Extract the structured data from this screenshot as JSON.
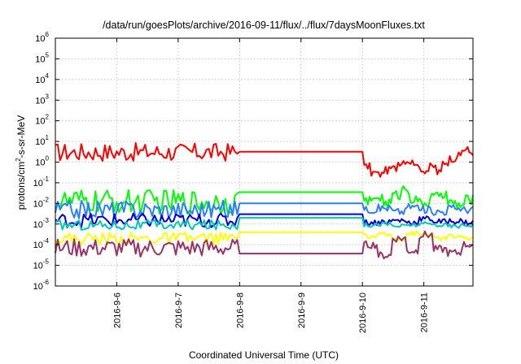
{
  "chart_data": {
    "type": "line",
    "title": "/data/run/goesPlots/archive/2016-09-11/flux/../flux/7daysMoonFluxes.txt",
    "xlabel": "Coordinated Universal Time (UTC)",
    "ylabel": {
      "base": "protons/cm",
      "sup": "2",
      "rest": "-s-sr-MeV"
    },
    "yscale": "log",
    "ylim": [
      1e-06,
      1000000.0
    ],
    "xlim": [
      0,
      6.8
    ],
    "y_ticks": [
      {
        "exp": "-6",
        "value": 1e-06
      },
      {
        "exp": "-5",
        "value": 1e-05
      },
      {
        "exp": "-4",
        "value": 0.0001
      },
      {
        "exp": "-3",
        "value": 0.001
      },
      {
        "exp": "-2",
        "value": 0.01
      },
      {
        "exp": "-1",
        "value": 0.1
      },
      {
        "exp": "0",
        "value": 1
      },
      {
        "exp": "1",
        "value": 10
      },
      {
        "exp": "2",
        "value": 100
      },
      {
        "exp": "3",
        "value": 1000
      },
      {
        "exp": "4",
        "value": 10000
      },
      {
        "exp": "5",
        "value": 100000
      },
      {
        "exp": "6",
        "value": 1000000
      }
    ],
    "x_ticks": [
      {
        "label": "2016-9-6",
        "value": 1
      },
      {
        "label": "2016-9-7",
        "value": 2
      },
      {
        "label": "2016-9-8",
        "value": 3
      },
      {
        "label": "2016-9-9",
        "value": 4
      },
      {
        "label": "2016-9-10",
        "value": 5
      },
      {
        "label": "2016-9-11",
        "value": 6
      }
    ],
    "grid": true,
    "legend": "none",
    "series": [
      {
        "color": "#ff0000",
        "mean": 3.0,
        "noise": 0.45,
        "flat": 3.2,
        "after": [
          0.6,
          0.3,
          0.25,
          0.4,
          0.5,
          1.0,
          1.2,
          1.0,
          0.5,
          0.4,
          0.6,
          0.3,
          1.0,
          1.5,
          2.0,
          4.0,
          3.0
        ]
      },
      {
        "color": "#00ff00",
        "mean": 0.012,
        "noise": 0.6,
        "flat": 0.035,
        "after": [
          0.012,
          0.02,
          0.01,
          0.025,
          0.05,
          0.015,
          0.01,
          0.02,
          0.03,
          0.01,
          0.008,
          0.015
        ]
      },
      {
        "color": "#2a7fff",
        "mean": 0.005,
        "noise": 0.45,
        "flat": 0.01,
        "after": [
          0.005,
          0.006,
          0.004,
          0.007,
          0.005,
          0.004,
          0.006,
          0.005
        ]
      },
      {
        "color": "#0000dd",
        "mean": 0.0015,
        "noise": 0.35,
        "flat": 0.003,
        "after": [
          0.0012,
          0.0013,
          0.0015,
          0.0012,
          0.0018,
          0.0013,
          0.0014,
          0.0012
        ]
      },
      {
        "color": "#00c8b4",
        "mean": 0.0009,
        "noise": 0.25,
        "flat": 0.002,
        "after": [
          0.0009,
          0.001,
          0.0008,
          0.0009,
          0.001,
          0.0009,
          0.0008,
          0.0009
        ]
      },
      {
        "color": "#ffff00",
        "mean": 0.0002,
        "noise": 0.3,
        "flat": 0.0004,
        "after": [
          0.00025,
          0.0003,
          0.0002,
          0.00035,
          0.0003,
          0.0002,
          0.00025,
          0.0002
        ]
      },
      {
        "color": "#993366",
        "mean": 7e-05,
        "noise": 0.45,
        "flat": 3.7e-05,
        "after": [
          0.0001,
          3e-05,
          0.0002,
          5e-05,
          0.0003,
          6e-05,
          4e-05,
          0.0001
        ]
      }
    ]
  }
}
